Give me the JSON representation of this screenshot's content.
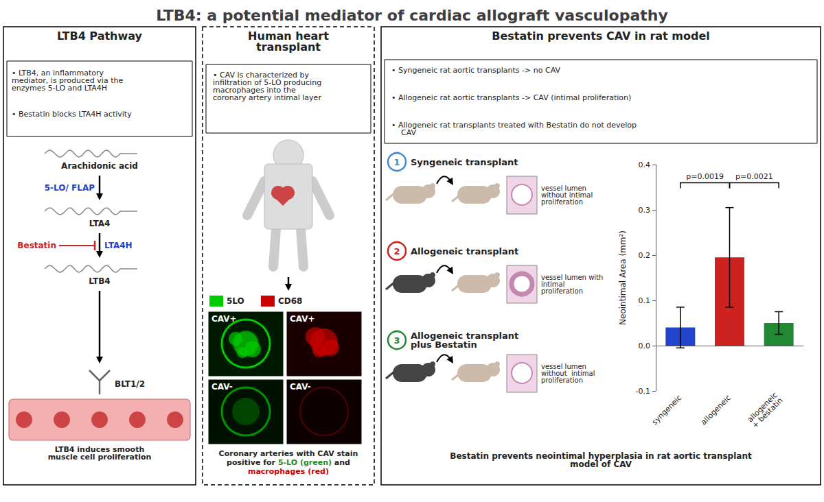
{
  "chart_data": {
    "type": "bar",
    "title": "LTB4: a potential mediator of cardiac allograft vasculopathy",
    "categories": [
      "syngeneic",
      "allogeneic",
      "allogeneic\n+ bestatin"
    ],
    "values": [
      0.04,
      0.195,
      0.05
    ],
    "errors": [
      0.045,
      0.11,
      0.025
    ],
    "colors": [
      "#2244cc",
      "#cc2222",
      "#228833"
    ],
    "ylabel": "Neointimal Area (mm²)",
    "ylim": [
      -0.1,
      0.4
    ],
    "yticks": [
      -0.1,
      {
        "value": 0,
        "label": "0.0"
      },
      0.1,
      0.2,
      0.3,
      0.4
    ],
    "grid": false,
    "annotations": [
      {
        "text": "p=0.0019",
        "from": 0,
        "to": 1,
        "y": 0.36
      },
      {
        "text": "p=0.0021",
        "from": 1,
        "to": 2,
        "y": 0.36
      }
    ],
    "caption": "Bestatin prevents neointimal hyperplasia in rat aortic transplant\nmodel of CAV",
    "panels": [
      {
        "title": "LTB4 Pathway",
        "bullets": [
          "• LTB4, an inflammatory\nmediator, is produced via the\nenzymes 5-LO and LTA4H",
          "• Bestatin blocks LTA4H activity"
        ],
        "molecules": [
          "Arachidonic acid",
          "LTA4",
          "LTB4"
        ],
        "steps": [
          {
            "text": "5-LO/ FLAP",
            "color": "#2244cc"
          },
          {
            "text": "LTA4H",
            "color": "#2244cc"
          }
        ],
        "inhibitor": {
          "text": "Bestatin",
          "color": "#cc2222"
        },
        "receptor": "BLT1/2",
        "outcome": "LTB4 induces smooth\nmuscle cell proliferation"
      },
      {
        "title": "Human heart\ntransplant",
        "bullets": [
          "• CAV is characterized by\ninfiltration of 5-LO producing\nmacrophages into the\ncoronary artery intimal layer"
        ],
        "legend": [
          {
            "name": "5LO",
            "color": "#00cc00"
          },
          {
            "name": "CD68",
            "color": "#cc0000"
          }
        ],
        "image_labels": [
          "CAV+",
          "CAV+",
          "CAV-",
          "CAV-"
        ],
        "caption": [
          [
            {
              "text": "Coronary arteries with CAV stain"
            }
          ],
          [
            {
              "text": "positive for "
            },
            {
              "text": "5-LO (green)",
              "color": "#228B22"
            },
            {
              "text": " and"
            }
          ],
          [
            {
              "text": "macrophages (red)",
              "color": "#cc0000"
            }
          ]
        ]
      },
      {
        "title": "Bestatin prevents CAV in rat model",
        "bullets": [
          "• Syngeneic rat aortic transplants -> no CAV",
          "• Allogeneic rat aortic transplants -> CAV (intimal proliferation)",
          "• Allogeneic rat transplants treated with Bestatin do not develop\n    CAV"
        ],
        "scenes": [
          {
            "number": "1",
            "color": "#4488cc",
            "label": "Syngeneic transplant",
            "vessel": "vessel lumen\nwithout intimal\nproliferation"
          },
          {
            "number": "2",
            "color": "#cc2222",
            "label": "Allogeneic transplant",
            "vessel": "vessel lumen with\nintimal\nproliferation"
          },
          {
            "number": "3",
            "color": "#228833",
            "label": "Allogeneic transplant\nplus Bestatin",
            "vessel": "vessel lumen\nwithout  intimal\nproliferation"
          }
        ]
      }
    ]
  }
}
